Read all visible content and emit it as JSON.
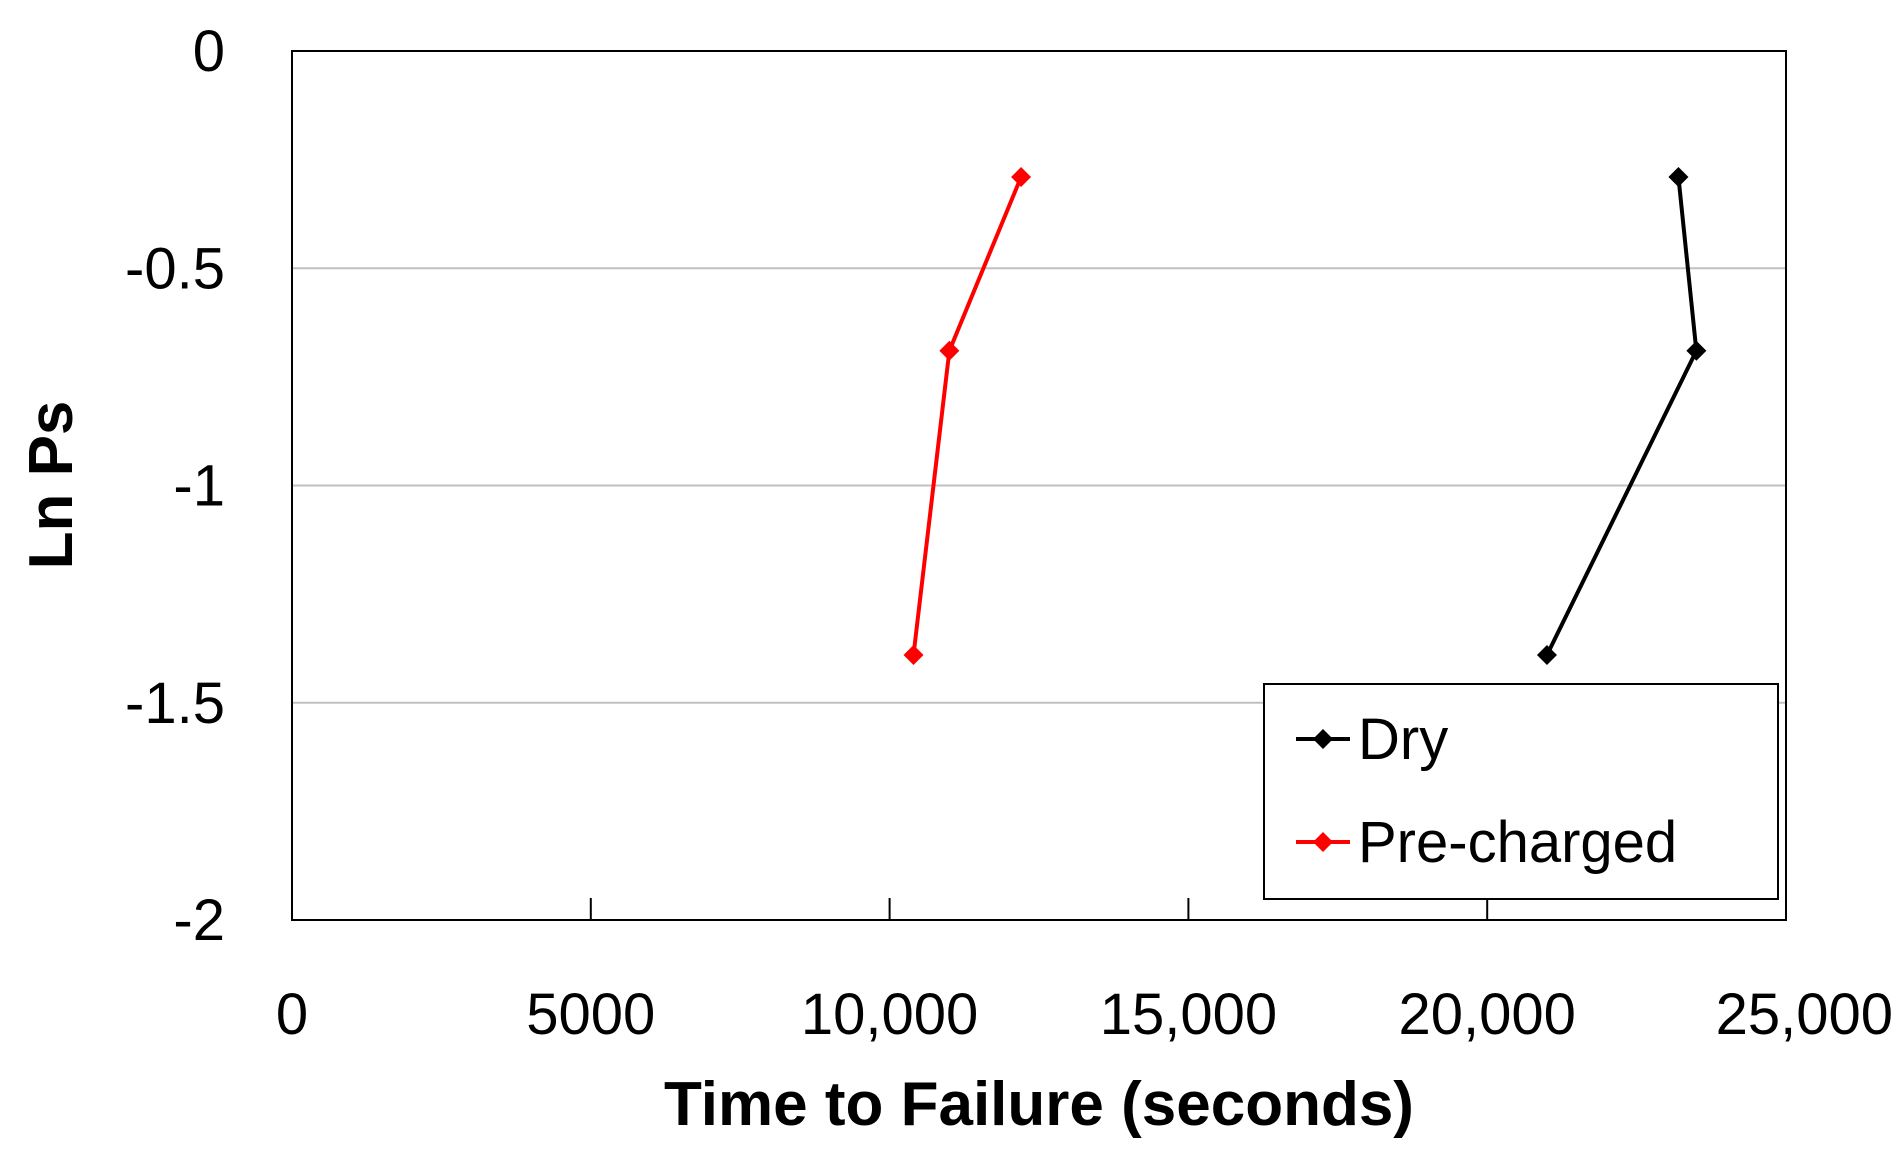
{
  "chart_data": {
    "type": "line",
    "title": "",
    "xlabel": "Time to Failure (seconds)",
    "ylabel": "Ln Ps",
    "xlim": [
      0,
      25000
    ],
    "ylim": [
      -2,
      0
    ],
    "x_ticks": [
      0,
      5000,
      10000,
      15000,
      20000,
      25000
    ],
    "x_tick_labels": [
      "0",
      "5000",
      "10,000",
      "15,000",
      "20,000",
      "25,000"
    ],
    "y_ticks": [
      0,
      -0.5,
      -1,
      -1.5,
      -2
    ],
    "y_tick_labels": [
      "0",
      "-0.5",
      "-1",
      "-1.5",
      "-2"
    ],
    "grid": "horizontal",
    "legend_position": "bottom-right",
    "series": [
      {
        "name": "Dry",
        "color": "#000000",
        "marker": "diamond",
        "points": [
          {
            "x": 23200,
            "y": -0.29
          },
          {
            "x": 23500,
            "y": -0.69
          },
          {
            "x": 21000,
            "y": -1.39
          }
        ]
      },
      {
        "name": "Pre-charged",
        "color": "#ff0000",
        "marker": "diamond",
        "points": [
          {
            "x": 12200,
            "y": -0.29
          },
          {
            "x": 11000,
            "y": -0.69
          },
          {
            "x": 10400,
            "y": -1.39
          }
        ]
      }
    ]
  }
}
